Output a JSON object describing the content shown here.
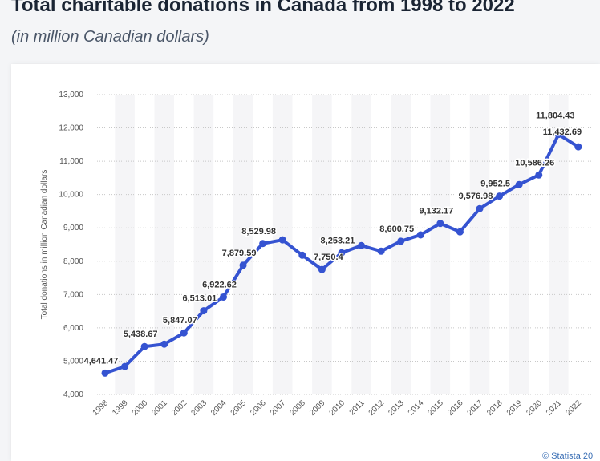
{
  "header": {
    "title": "Total charitable donations in Canada from 1998 to 2022",
    "subtitle": "(in million Canadian dollars)"
  },
  "footer": {
    "credit": "© Statista 20"
  },
  "colors": {
    "line": "#3553d1",
    "band": "#f5f5f7",
    "grid": "#c8c8c8"
  },
  "chart_data": {
    "type": "line",
    "title": "Total charitable donations in Canada from 1998 to 2022",
    "subtitle": "(in million Canadian dollars)",
    "ylabel": "Total donations in million Canadian dollars",
    "xlabel": "",
    "ylim": [
      4000,
      13000
    ],
    "yticks": [
      4000,
      5000,
      6000,
      7000,
      8000,
      9000,
      10000,
      11000,
      12000,
      13000
    ],
    "ytick_labels": [
      "4,000",
      "5,000",
      "6,000",
      "7,000",
      "8,000",
      "9,000",
      "10,000",
      "11,000",
      "12,000",
      "13,000"
    ],
    "grid": true,
    "categories": [
      "1998",
      "1999",
      "2000",
      "2001",
      "2002",
      "2003",
      "2004",
      "2005",
      "2006",
      "2007",
      "2008",
      "2009",
      "2010",
      "2011",
      "2012",
      "2013",
      "2014",
      "2015",
      "2016",
      "2017",
      "2018",
      "2019",
      "2020",
      "2021",
      "2022"
    ],
    "values": [
      4641.47,
      4840,
      5438.67,
      5510,
      5847.07,
      6513.01,
      6922.62,
      7879.59,
      8529.98,
      8640,
      8180,
      7750.4,
      8253.21,
      8470,
      8300,
      8600.75,
      8790,
      9132.17,
      8880,
      9576.98,
      9952.5,
      10300,
      10586.26,
      11804.43,
      11432.69
    ],
    "data_labels": [
      "4,641.47",
      "",
      "5,438.67",
      "",
      "5,847.07",
      "6,513.01",
      "6,922.62",
      "7,879.59",
      "8,529.98",
      "",
      "",
      "7,750.4",
      "8,253.21",
      "",
      "",
      "8,600.75",
      "",
      "9,132.17",
      "",
      "9,576.98",
      "9,952.5",
      "",
      "10,586.26",
      "11,804.43",
      "11,432.69"
    ]
  }
}
